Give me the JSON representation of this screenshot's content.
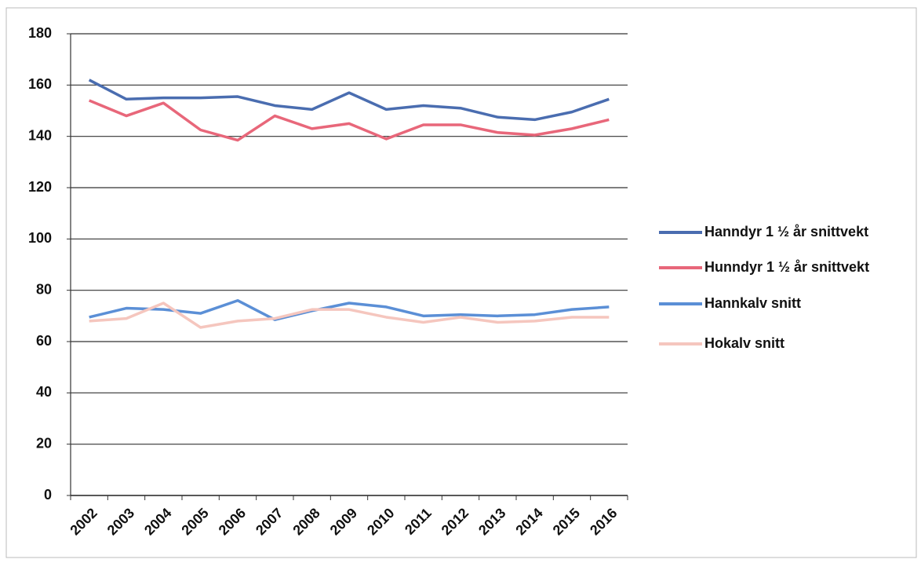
{
  "chart_data": {
    "type": "line",
    "categories": [
      "2002",
      "2003",
      "2004",
      "2005",
      "2006",
      "2007",
      "2008",
      "2009",
      "2010",
      "2011",
      "2012",
      "2013",
      "2014",
      "2015",
      "2016"
    ],
    "series": [
      {
        "name": "Hanndyr 1 ½ år snittvekt",
        "color": "#4a6db0",
        "values": [
          162,
          154.5,
          155,
          155,
          155.5,
          152,
          150.5,
          157,
          150.5,
          152,
          151,
          147.5,
          146.5,
          149.5,
          154.5
        ]
      },
      {
        "name": "Hunndyr 1 ½ år snittvekt",
        "color": "#e8677a",
        "values": [
          154,
          148,
          153,
          142.5,
          138.5,
          148,
          143,
          145,
          139,
          144.5,
          144.5,
          141.5,
          140.5,
          143,
          146.5
        ]
      },
      {
        "name": "Hannkalv snitt",
        "color": "#5b8fd6",
        "values": [
          69.5,
          73,
          72.5,
          71,
          76,
          68.5,
          72,
          75,
          73.5,
          70,
          70.5,
          70,
          70.5,
          72.5,
          73.5
        ]
      },
      {
        "name": "Hokalv snitt",
        "color": "#f5c6be",
        "values": [
          68,
          69,
          75,
          65.5,
          68,
          69,
          72.5,
          72.5,
          69.5,
          67.5,
          69.5,
          67.5,
          68,
          69.5,
          69.5
        ]
      }
    ],
    "ylim": [
      0,
      180
    ],
    "yticks": [
      0,
      20,
      40,
      60,
      80,
      100,
      120,
      140,
      160,
      180
    ],
    "grid": true,
    "legend": "right"
  }
}
